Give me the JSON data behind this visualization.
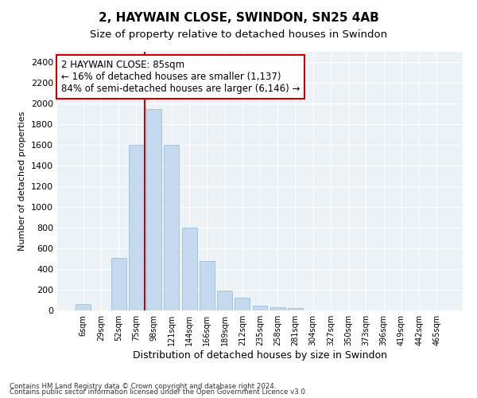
{
  "title": "2, HAYWAIN CLOSE, SWINDON, SN25 4AB",
  "subtitle": "Size of property relative to detached houses in Swindon",
  "xlabel": "Distribution of detached houses by size in Swindon",
  "ylabel": "Number of detached properties",
  "footnote1": "Contains HM Land Registry data © Crown copyright and database right 2024.",
  "footnote2": "Contains public sector information licensed under the Open Government Licence v3.0.",
  "annotation_title": "2 HAYWAIN CLOSE: 85sqm",
  "annotation_line1": "← 16% of detached houses are smaller (1,137)",
  "annotation_line2": "84% of semi-detached houses are larger (6,146) →",
  "bar_labels": [
    "6sqm",
    "29sqm",
    "52sqm",
    "75sqm",
    "98sqm",
    "121sqm",
    "144sqm",
    "166sqm",
    "189sqm",
    "212sqm",
    "235sqm",
    "258sqm",
    "281sqm",
    "304sqm",
    "327sqm",
    "350sqm",
    "373sqm",
    "396sqm",
    "419sqm",
    "442sqm",
    "465sqm"
  ],
  "bar_values": [
    65,
    0,
    510,
    1600,
    1950,
    1600,
    800,
    480,
    190,
    120,
    50,
    30,
    20,
    0,
    0,
    0,
    0,
    0,
    0,
    0,
    0
  ],
  "bar_color": "#c5d9ee",
  "bar_edge_color": "#90b8d8",
  "background_color": "#edf2f7",
  "grid_color": "#ffffff",
  "vline_x_index": 3.5,
  "vline_color": "#cc0000",
  "ylim": [
    0,
    2500
  ],
  "yticks": [
    0,
    200,
    400,
    600,
    800,
    1000,
    1200,
    1400,
    1600,
    1800,
    2000,
    2200,
    2400
  ],
  "title_fontsize": 11,
  "subtitle_fontsize": 9.5,
  "xlabel_fontsize": 9,
  "ylabel_fontsize": 8,
  "annotation_box_color": "#cc0000",
  "annotation_text_fontsize": 8.5
}
